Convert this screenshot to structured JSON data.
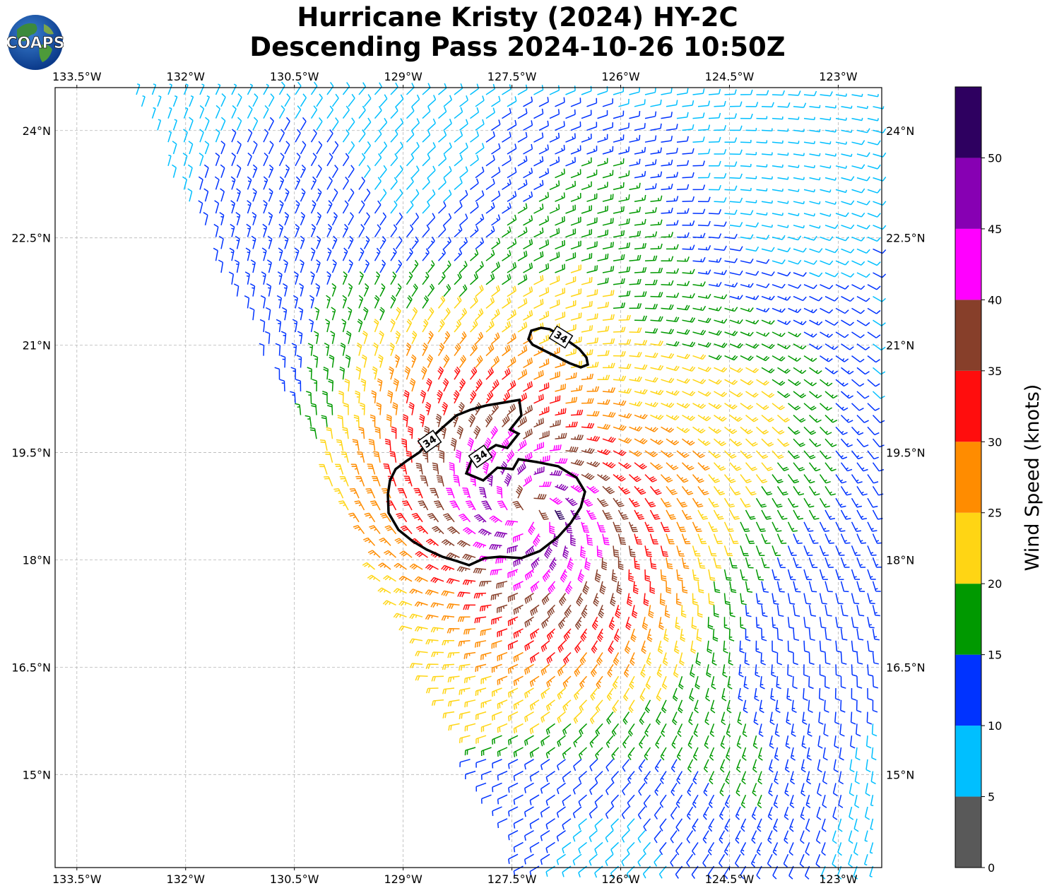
{
  "header": {
    "title_line1": "Hurricane Kristy (2024) HY-2C",
    "title_line2": "Descending Pass 2024-10-26 10:50Z",
    "logo_text": "COAPS"
  },
  "map": {
    "lon_range": [
      -133.8,
      -122.4
    ],
    "lat_range": [
      13.7,
      24.6
    ],
    "lon_ticks": [
      "133.5°W",
      "132°W",
      "130.5°W",
      "129°W",
      "127.5°W",
      "126°W",
      "124.5°W",
      "123°W"
    ],
    "lon_tick_values": [
      -133.5,
      -132,
      -130.5,
      -129,
      -127.5,
      -126,
      -124.5,
      -123
    ],
    "lat_ticks": [
      "15°N",
      "16.5°N",
      "18°N",
      "19.5°N",
      "21°N",
      "22.5°N",
      "24°N"
    ],
    "lat_tick_values": [
      15,
      16.5,
      18,
      19.5,
      21,
      22.5,
      24
    ],
    "storm_center": {
      "lon": -127.3,
      "lat": 18.7
    },
    "contour_level": "34",
    "contour_labels": [
      "34",
      "34",
      "34"
    ],
    "grid": true
  },
  "colorbar": {
    "label": "Wind Speed (knots)",
    "ticks": [
      "0",
      "5",
      "10",
      "15",
      "20",
      "25",
      "30",
      "35",
      "40",
      "45",
      "50"
    ],
    "bins": [
      {
        "min": 0,
        "max": 5,
        "color": "#595959"
      },
      {
        "min": 5,
        "max": 10,
        "color": "#00bfff"
      },
      {
        "min": 10,
        "max": 15,
        "color": "#0033ff"
      },
      {
        "min": 15,
        "max": 20,
        "color": "#009900"
      },
      {
        "min": 20,
        "max": 25,
        "color": "#ffd514"
      },
      {
        "min": 25,
        "max": 30,
        "color": "#ff8c00"
      },
      {
        "min": 30,
        "max": 35,
        "color": "#ff0d0d"
      },
      {
        "min": 35,
        "max": 40,
        "color": "#873f2a"
      },
      {
        "min": 40,
        "max": 45,
        "color": "#ff00ff"
      },
      {
        "min": 45,
        "max": 50,
        "color": "#8700b3"
      },
      {
        "min": 50,
        "max": 55,
        "color": "#2e0060"
      }
    ]
  }
}
